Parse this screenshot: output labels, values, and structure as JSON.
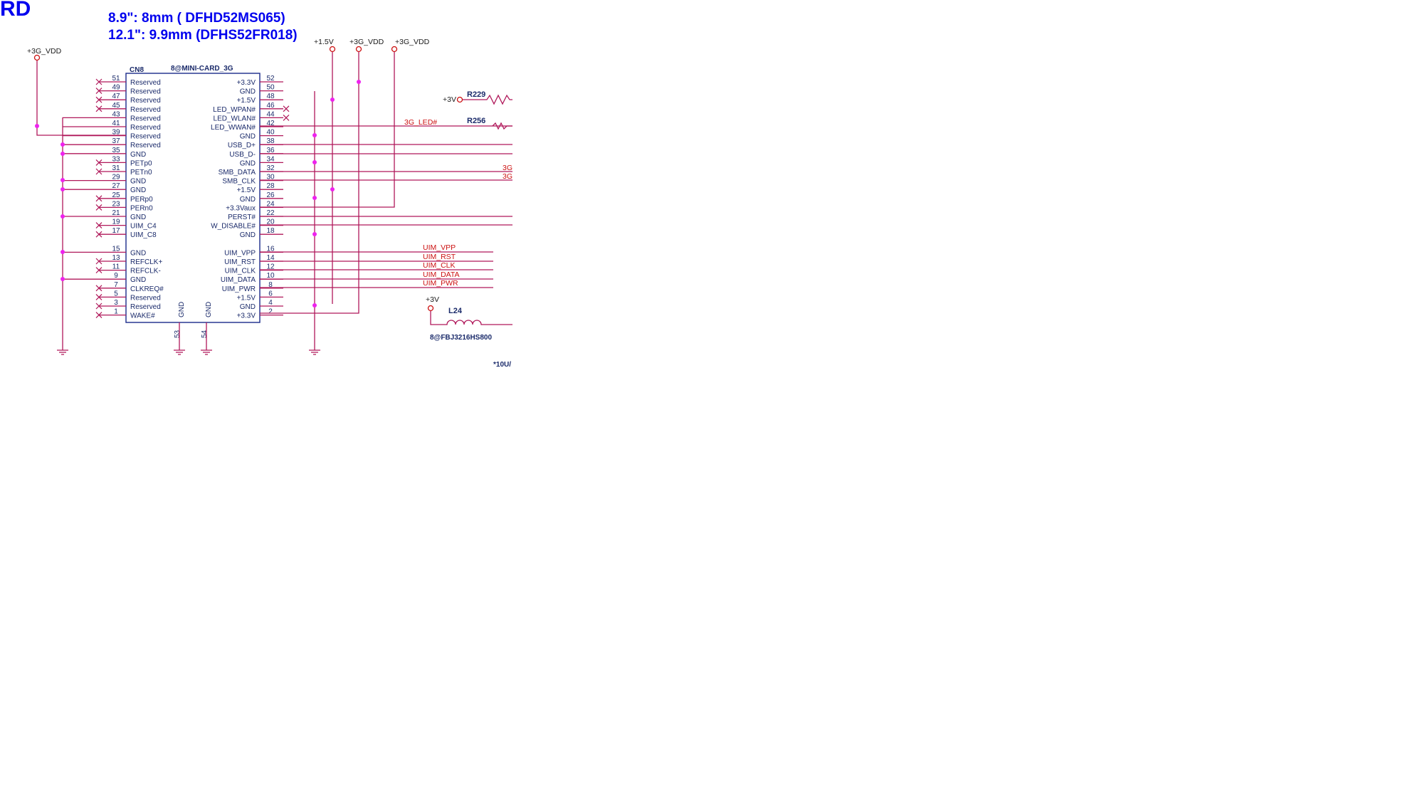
{
  "header": {
    "title_fragment": "RD",
    "size_note_1": "8.9\": 8mm ( DFHD52MS065)",
    "size_note_2": "12.1\": 9.9mm (DFHS52FR018)"
  },
  "connector": {
    "refdes": "CN8",
    "part": "8@MINI-CARD_3G",
    "left_pins": [
      {
        "num": "51",
        "name": "Reserved",
        "nc": true
      },
      {
        "num": "49",
        "name": "Reserved",
        "nc": true
      },
      {
        "num": "47",
        "name": "Reserved",
        "nc": true
      },
      {
        "num": "45",
        "name": "Reserved",
        "nc": true
      },
      {
        "num": "43",
        "name": "Reserved",
        "nc": false
      },
      {
        "num": "41",
        "name": "Reserved",
        "nc": false
      },
      {
        "num": "39",
        "name": "Reserved",
        "nc": false
      },
      {
        "num": "37",
        "name": "Reserved",
        "nc": false
      },
      {
        "num": "35",
        "name": "GND",
        "nc": false
      },
      {
        "num": "33",
        "name": "PETp0",
        "nc": true
      },
      {
        "num": "31",
        "name": "PETn0",
        "nc": true
      },
      {
        "num": "29",
        "name": "GND",
        "nc": false
      },
      {
        "num": "27",
        "name": "GND",
        "nc": false
      },
      {
        "num": "25",
        "name": "PERp0",
        "nc": true
      },
      {
        "num": "23",
        "name": "PERn0",
        "nc": true
      },
      {
        "num": "21",
        "name": "GND",
        "nc": false
      },
      {
        "num": "19",
        "name": "UIM_C4",
        "nc": true
      },
      {
        "num": "17",
        "name": "UIM_C8",
        "nc": true
      },
      {
        "num": "15",
        "name": "GND",
        "nc": false
      },
      {
        "num": "13",
        "name": "REFCLK+",
        "nc": true
      },
      {
        "num": "11",
        "name": "REFCLK-",
        "nc": true
      },
      {
        "num": "9",
        "name": "GND",
        "nc": false
      },
      {
        "num": "7",
        "name": "CLKREQ#",
        "nc": true
      },
      {
        "num": "5",
        "name": "Reserved",
        "nc": true
      },
      {
        "num": "3",
        "name": "Reserved",
        "nc": true
      },
      {
        "num": "1",
        "name": "WAKE#",
        "nc": true
      }
    ],
    "right_pins": [
      {
        "num": "52",
        "name": "+3.3V"
      },
      {
        "num": "50",
        "name": "GND"
      },
      {
        "num": "48",
        "name": "+1.5V"
      },
      {
        "num": "46",
        "name": "LED_WPAN#"
      },
      {
        "num": "44",
        "name": "LED_WLAN#"
      },
      {
        "num": "42",
        "name": "LED_WWAN#"
      },
      {
        "num": "40",
        "name": "GND"
      },
      {
        "num": "38",
        "name": "USB_D+"
      },
      {
        "num": "36",
        "name": "USB_D-"
      },
      {
        "num": "34",
        "name": "GND"
      },
      {
        "num": "32",
        "name": "SMB_DATA"
      },
      {
        "num": "30",
        "name": "SMB_CLK"
      },
      {
        "num": "28",
        "name": "+1.5V"
      },
      {
        "num": "26",
        "name": "GND"
      },
      {
        "num": "24",
        "name": "+3.3Vaux"
      },
      {
        "num": "22",
        "name": "PERST#"
      },
      {
        "num": "20",
        "name": "W_DISABLE#"
      },
      {
        "num": "18",
        "name": "GND"
      },
      {
        "num": "16",
        "name": "UIM_VPP"
      },
      {
        "num": "14",
        "name": "UIM_RST"
      },
      {
        "num": "12",
        "name": "UIM_CLK"
      },
      {
        "num": "10",
        "name": "UIM_DATA"
      },
      {
        "num": "8",
        "name": "UIM_PWR"
      },
      {
        "num": "6",
        "name": "+1.5V"
      },
      {
        "num": "4",
        "name": "GND"
      },
      {
        "num": "2",
        "name": "+3.3V"
      }
    ],
    "bottom_pins": [
      {
        "num": "53",
        "name": "GND"
      },
      {
        "num": "54",
        "name": "GND"
      }
    ]
  },
  "power_rails": {
    "left_3g_vdd": "+3G_VDD",
    "top_1v5": "+1.5V",
    "top_3g_vdd_a": "+3G_VDD",
    "top_3g_vdd_b": "+3G_VDD",
    "r229_rail": "+3V",
    "l24_rail": "+3V"
  },
  "nets": {
    "led_3g": "3G_LED#",
    "uim_vpp": "UIM_VPP",
    "uim_rst": "UIM_RST",
    "uim_clk": "UIM_CLK",
    "uim_data": "UIM_DATA",
    "uim_pwr": "UIM_PWR",
    "smb_fragment_1": "3G",
    "smb_fragment_2": "3G"
  },
  "components": {
    "r229": "R229",
    "r256": "R256",
    "l24": "L24",
    "l24_part": "8@FBJ3216HS800",
    "cap_fragment": "*10U/"
  }
}
